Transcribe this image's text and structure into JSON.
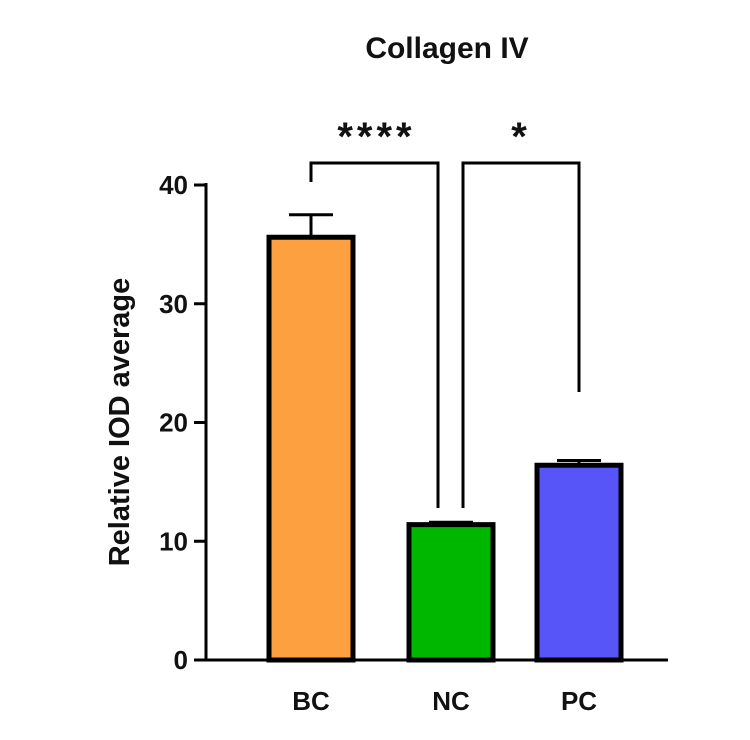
{
  "chart_data": {
    "type": "bar",
    "title": "Collagen IV",
    "xlabel": "",
    "ylabel": "Relative IOD average",
    "categories": [
      "BC",
      "NC",
      "PC"
    ],
    "values": [
      35.6,
      11.4,
      16.4
    ],
    "errors": [
      1.9,
      0.2,
      0.4
    ],
    "colors": [
      "#FCA040",
      "#00B700",
      "#5755F8"
    ],
    "ylim": [
      0,
      40
    ],
    "yticks": [
      0,
      10,
      20,
      30,
      40
    ],
    "ytick_labels": [
      "0",
      "10",
      "20",
      "30",
      "40"
    ],
    "grid": false,
    "significance": [
      {
        "from": "BC",
        "to": "NC",
        "label": "****"
      },
      {
        "from": "NC",
        "to": "PC",
        "label": "*"
      }
    ]
  }
}
